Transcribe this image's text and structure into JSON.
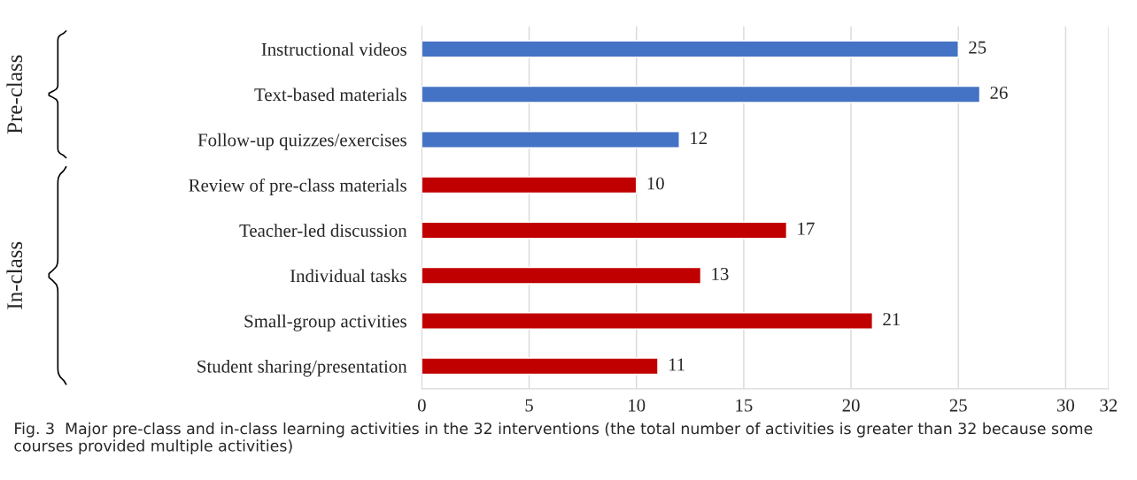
{
  "chart_data": {
    "type": "bar",
    "orientation": "horizontal",
    "categories": [
      "Instructional videos",
      "Text-based materials",
      "Follow-up quizzes/exercises",
      "Review of pre-class materials",
      "Teacher-led discussion",
      "Individual tasks",
      "Small-group activities",
      "Student sharing/presentation"
    ],
    "values": [
      25,
      26,
      12,
      10,
      17,
      13,
      21,
      11
    ],
    "colors": [
      "#4472c4",
      "#4472c4",
      "#4472c4",
      "#c00000",
      "#c00000",
      "#c00000",
      "#c00000",
      "#c00000"
    ],
    "xlim": [
      0,
      32
    ],
    "xticks": [
      0,
      5,
      10,
      15,
      20,
      25,
      30,
      32
    ],
    "grid": "x",
    "data_labels": true,
    "annotations": [
      "Pre-class",
      "In-class",
      "Fig. 3  Major pre-class and in-class learning activities in the 32 interventions (the total number of activities is greater than 32 because some courses provided multiple activities)"
    ]
  }
}
